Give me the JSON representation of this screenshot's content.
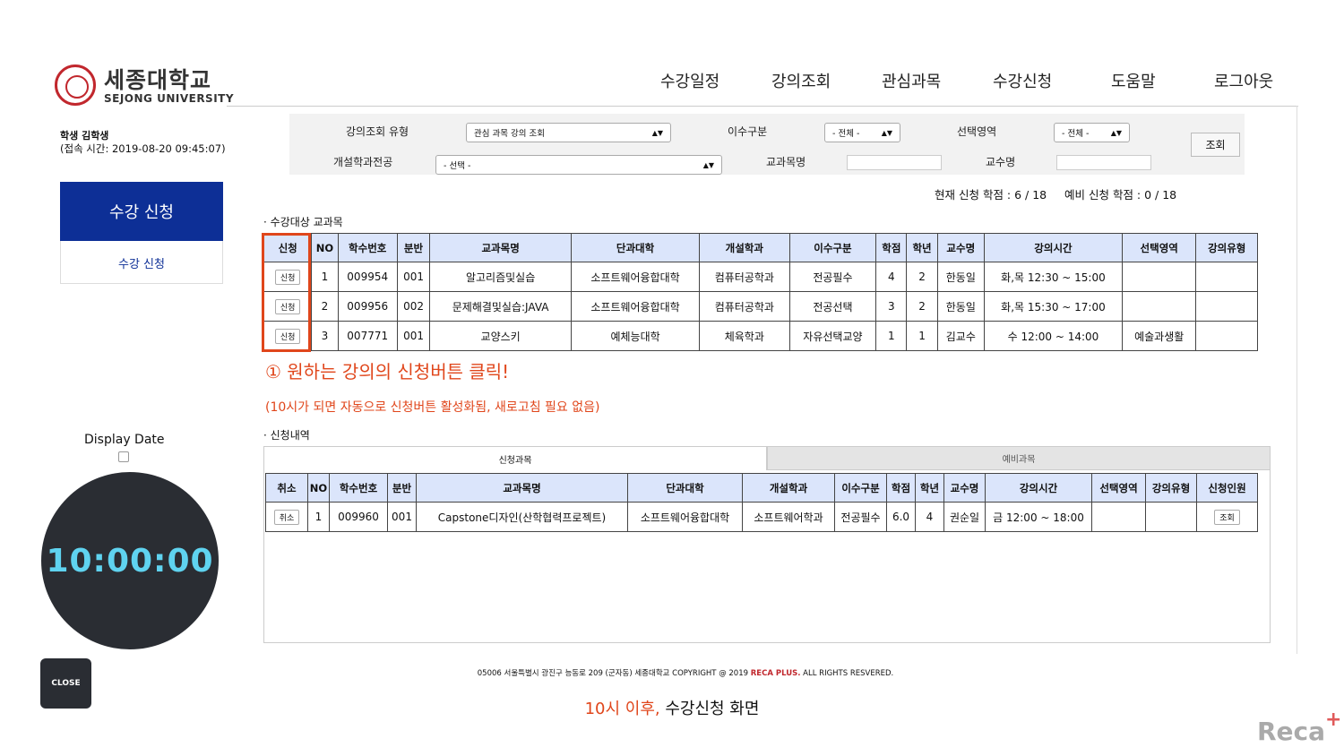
{
  "header": {
    "logo_ko": "세종대학교",
    "logo_en": "SEJONG UNIVERSITY",
    "nav": [
      "수강일정",
      "강의조회",
      "관심과목",
      "수강신청",
      "도움말",
      "로그아웃"
    ]
  },
  "sidebar": {
    "student": "학생 김학생",
    "login_time": "(접속 시간: 2019-08-20 09:45:07)",
    "menu_title": "수강 신청",
    "menu_item": "수강 신청"
  },
  "timer": {
    "label": "Display Date",
    "time": "10:00:00",
    "close": "CLOSE"
  },
  "search": {
    "type_label": "강의조회 유형",
    "type_value": "관심 과목 강의 조회",
    "category_label": "이수구분",
    "category_value": "- 전체 -",
    "area_label": "선택영역",
    "area_value": "- 전체 -",
    "dept_label": "개설학과전공",
    "dept_value": "- 선택 -",
    "course_label": "교과목명",
    "prof_label": "교수명",
    "button": "조회"
  },
  "credits": {
    "current": "현재 신청 학점 : 6 / 18",
    "reserve": "예비 신청 학점 : 0 / 18"
  },
  "target": {
    "title": "· 수강대상 교과목",
    "headers": [
      "신청",
      "NO",
      "학수번호",
      "분반",
      "교과목명",
      "단과대학",
      "개설학과",
      "이수구분",
      "학점",
      "학년",
      "교수명",
      "강의시간",
      "선택영역",
      "강의유형"
    ],
    "button_label": "신청",
    "rows": [
      [
        "1",
        "009954",
        "001",
        "알고리즘및실습",
        "소프트웨어융합대학",
        "컴퓨터공학과",
        "전공필수",
        "4",
        "2",
        "한동일",
        "화,목 12:30 ~ 15:00",
        "",
        ""
      ],
      [
        "2",
        "009956",
        "002",
        "문제해결및실습:JAVA",
        "소프트웨어융합대학",
        "컴퓨터공학과",
        "전공선택",
        "3",
        "2",
        "한동일",
        "화,목 15:30 ~ 17:00",
        "",
        ""
      ],
      [
        "3",
        "007771",
        "001",
        "교양스키",
        "예체능대학",
        "체육학과",
        "자유선택교양",
        "1",
        "1",
        "김교수",
        "수 12:00 ~ 14:00",
        "예술과생활",
        ""
      ]
    ]
  },
  "annotation": {
    "main": "① 원하는 강의의 신청버튼 클릭!",
    "sub": "(10시가 되면 자동으로 신청버튼 활성화됨, 새로고침 필요 없음)"
  },
  "history": {
    "title": "· 신청내역",
    "tabs": [
      "신청과목",
      "예비과목"
    ],
    "headers": [
      "취소",
      "NO",
      "학수번호",
      "분반",
      "교과목명",
      "단과대학",
      "개설학과",
      "이수구분",
      "학점",
      "학년",
      "교수명",
      "강의시간",
      "선택영역",
      "강의유형",
      "신청인원"
    ],
    "cancel_label": "취소",
    "view_label": "조회",
    "rows": [
      [
        "1",
        "009960",
        "001",
        "Capstone디자인(산학협력프로젝트)",
        "소프트웨어융합대학",
        "소프트웨어학과",
        "전공필수",
        "6.0",
        "4",
        "권순일",
        "금 12:00 ~ 18:00",
        "",
        ""
      ]
    ]
  },
  "footer": {
    "text": "05006 서울특별시 광진구 능동로 209 (군자동) 세종대학교 COPYRIGHT @ 2019 ",
    "brand": "RECA PLUS.",
    "rights": " ALL RIGHTS RESVERED."
  },
  "caption": {
    "red": "10시 이후,",
    "rest": " 수강신청 화면"
  },
  "watermark": {
    "text": "Reca",
    "plus": "+"
  },
  "colors": {
    "primary": "#0d2f96",
    "accent": "#e0461b",
    "table_header": "#dbe5fb",
    "timer_text": "#5fd3f0"
  }
}
